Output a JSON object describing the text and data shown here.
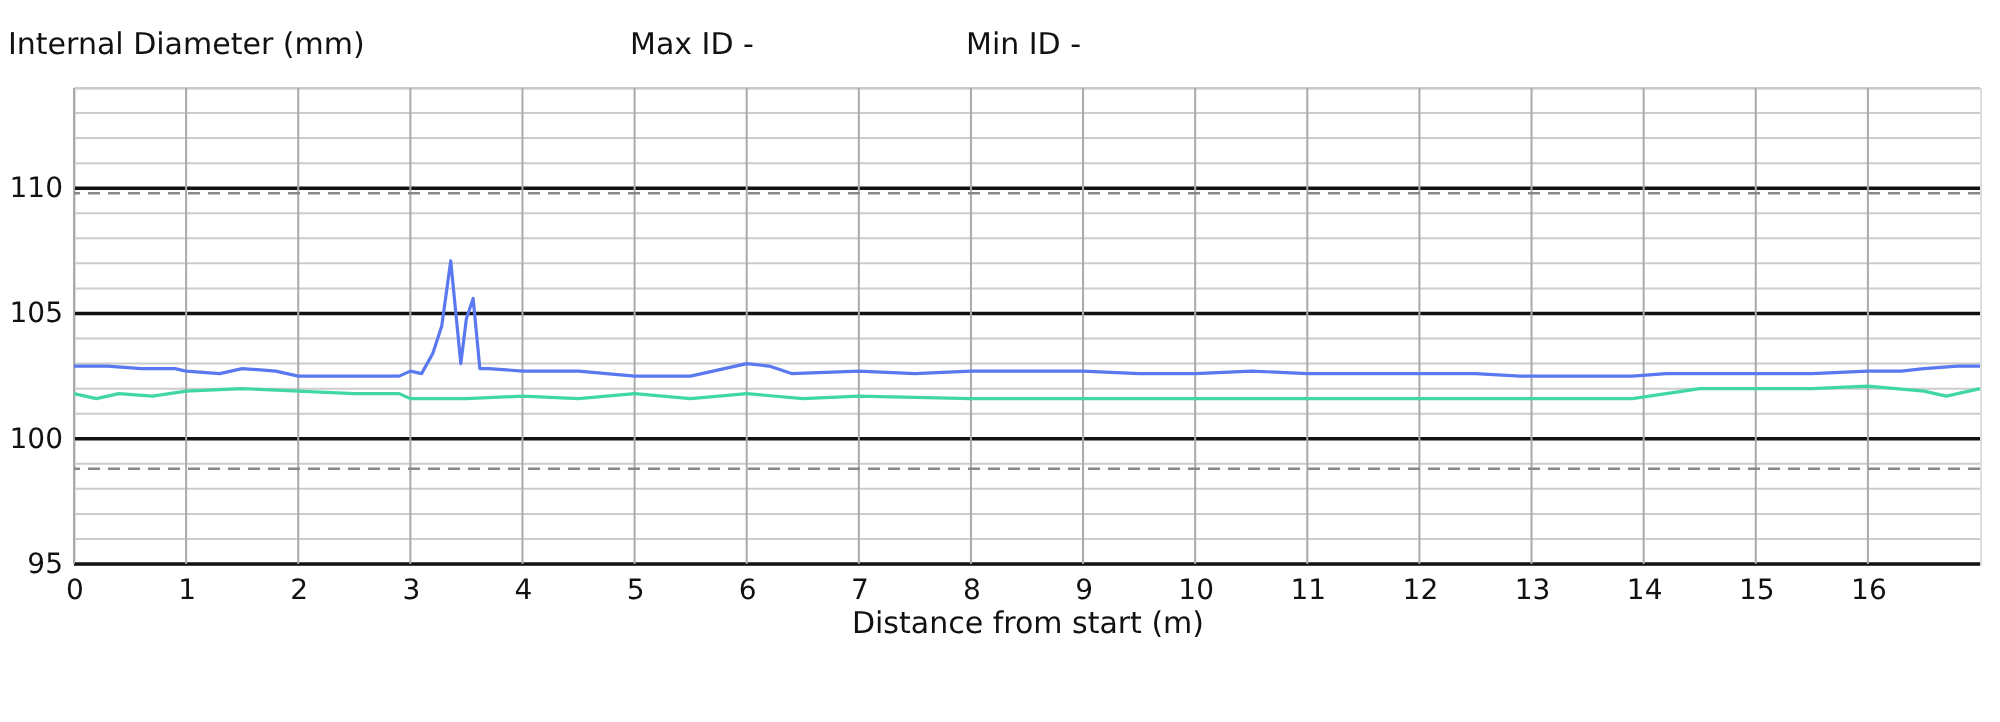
{
  "chart_data": {
    "type": "line",
    "ylabel": "Internal Diameter (mm)",
    "xlabel": "Distance from start (m)",
    "annotations": [
      "Max ID -",
      "Min ID -"
    ],
    "xlim": [
      0,
      17
    ],
    "xticks": [
      0,
      1,
      2,
      3,
      4,
      5,
      6,
      7,
      8,
      9,
      10,
      11,
      12,
      13,
      14,
      15,
      16
    ],
    "ylim": [
      95,
      114
    ],
    "yticks": [
      95,
      {
        "value": 96,
        "label": null
      },
      {
        "value": 97,
        "label": null
      },
      {
        "value": 98,
        "label": null
      },
      {
        "value": 99,
        "label": null
      },
      100,
      {
        "value": 101,
        "label": null
      },
      {
        "value": 102,
        "label": null
      },
      {
        "value": 103,
        "label": null
      },
      {
        "value": 104,
        "label": null
      },
      105,
      {
        "value": 106,
        "label": null
      },
      {
        "value": 107,
        "label": null
      },
      {
        "value": 108,
        "label": null
      },
      {
        "value": 109,
        "label": null
      },
      110,
      {
        "value": 111,
        "label": null
      },
      {
        "value": 112,
        "label": null
      },
      {
        "value": 113,
        "label": null
      },
      {
        "value": 114,
        "label": null
      }
    ],
    "grid": true,
    "marker": "none",
    "line_style": "solid",
    "ref_lines": [
      {
        "axis": "y",
        "value": 109.8,
        "color": "#888888",
        "line_style": "dashed"
      },
      {
        "axis": "y",
        "value": 98.8,
        "color": "#888888",
        "line_style": "dashed"
      }
    ],
    "series": [
      {
        "color": "#5a78f0",
        "x": [
          0,
          0.3,
          0.6,
          0.9,
          1.0,
          1.3,
          1.5,
          1.8,
          2.0,
          2.5,
          2.9,
          3.0,
          3.1,
          3.2,
          3.28,
          3.36,
          3.45,
          3.5,
          3.56,
          3.62,
          3.7,
          4.0,
          4.5,
          5.0,
          5.5,
          5.8,
          6.0,
          6.2,
          6.4,
          7.0,
          7.5,
          8.0,
          8.5,
          9.0,
          9.5,
          10.0,
          10.5,
          11.0,
          11.5,
          12.0,
          12.5,
          12.9,
          13.5,
          13.9,
          14.2,
          14.6,
          15.0,
          15.5,
          16.0,
          16.3,
          16.5,
          16.8,
          17
        ],
        "values": [
          102.9,
          102.9,
          102.8,
          102.8,
          102.7,
          102.6,
          102.8,
          102.7,
          102.5,
          102.5,
          102.5,
          102.7,
          102.6,
          103.4,
          104.5,
          107.1,
          103.0,
          104.8,
          105.6,
          102.8,
          102.8,
          102.7,
          102.7,
          102.5,
          102.5,
          102.8,
          103.0,
          102.9,
          102.6,
          102.7,
          102.6,
          102.7,
          102.7,
          102.7,
          102.6,
          102.6,
          102.7,
          102.6,
          102.6,
          102.6,
          102.6,
          102.5,
          102.5,
          102.5,
          102.6,
          102.6,
          102.6,
          102.6,
          102.7,
          102.7,
          102.8,
          102.9,
          102.9
        ]
      },
      {
        "color": "#40d8a0",
        "x": [
          0,
          0.2,
          0.4,
          0.7,
          1.0,
          1.5,
          2.0,
          2.5,
          2.9,
          3.0,
          3.5,
          4.0,
          4.5,
          5.0,
          5.5,
          6.0,
          6.5,
          7.0,
          8.0,
          9.0,
          10.0,
          11.0,
          12.0,
          13.0,
          13.9,
          14.2,
          14.5,
          15.0,
          15.5,
          16.0,
          16.5,
          16.7,
          17
        ],
        "values": [
          101.8,
          101.6,
          101.8,
          101.7,
          101.9,
          102.0,
          101.9,
          101.8,
          101.8,
          101.6,
          101.6,
          101.7,
          101.6,
          101.8,
          101.6,
          101.8,
          101.6,
          101.7,
          101.6,
          101.6,
          101.6,
          101.6,
          101.6,
          101.6,
          101.6,
          101.8,
          102.0,
          102.0,
          102.0,
          102.1,
          101.9,
          101.7,
          102.0
        ]
      }
    ]
  }
}
